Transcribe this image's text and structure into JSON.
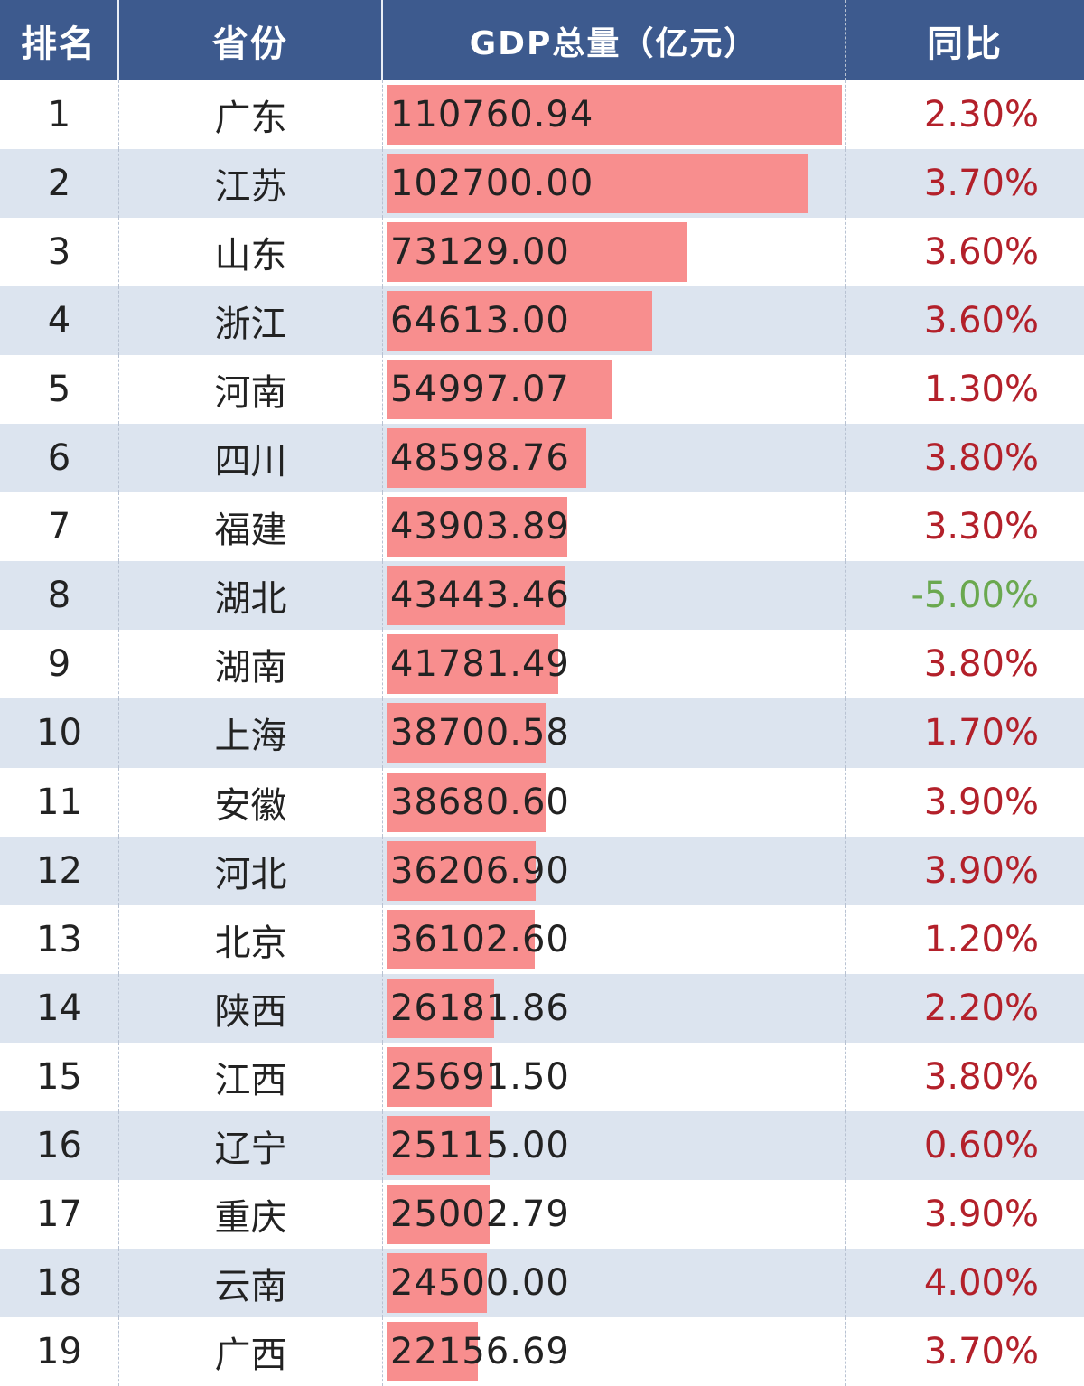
{
  "header": {
    "rank": "排名",
    "province": "省份",
    "gdp": "GDP总量（亿元）",
    "yoy": "同比"
  },
  "colors": {
    "header_bg": "#3d5a8e",
    "bar": "#f88e8e",
    "alt_row": "#dce4ef",
    "positive": "#b3202a",
    "negative": "#6aa84f"
  },
  "chart_data": {
    "type": "table",
    "columns": [
      "排名",
      "省份",
      "GDP总量（亿元）",
      "同比"
    ],
    "bar_max": 110760.94,
    "rows": [
      {
        "rank": "1",
        "province": "广东",
        "gdp": 110760.94,
        "gdp_text": "110760.94",
        "yoy": "2.30%"
      },
      {
        "rank": "2",
        "province": "江苏",
        "gdp": 102700.0,
        "gdp_text": "102700.00",
        "yoy": "3.70%"
      },
      {
        "rank": "3",
        "province": "山东",
        "gdp": 73129.0,
        "gdp_text": "73129.00",
        "yoy": "3.60%"
      },
      {
        "rank": "4",
        "province": "浙江",
        "gdp": 64613.0,
        "gdp_text": "64613.00",
        "yoy": "3.60%"
      },
      {
        "rank": "5",
        "province": "河南",
        "gdp": 54997.07,
        "gdp_text": "54997.07",
        "yoy": "1.30%"
      },
      {
        "rank": "6",
        "province": "四川",
        "gdp": 48598.76,
        "gdp_text": "48598.76",
        "yoy": "3.80%"
      },
      {
        "rank": "7",
        "province": "福建",
        "gdp": 43903.89,
        "gdp_text": "43903.89",
        "yoy": "3.30%"
      },
      {
        "rank": "8",
        "province": "湖北",
        "gdp": 43443.46,
        "gdp_text": "43443.46",
        "yoy": "-5.00%"
      },
      {
        "rank": "9",
        "province": "湖南",
        "gdp": 41781.49,
        "gdp_text": "41781.49",
        "yoy": "3.80%"
      },
      {
        "rank": "10",
        "province": "上海",
        "gdp": 38700.58,
        "gdp_text": "38700.58",
        "yoy": "1.70%"
      },
      {
        "rank": "11",
        "province": "安徽",
        "gdp": 38680.6,
        "gdp_text": "38680.60",
        "yoy": "3.90%"
      },
      {
        "rank": "12",
        "province": "河北",
        "gdp": 36206.9,
        "gdp_text": "36206.90",
        "yoy": "3.90%"
      },
      {
        "rank": "13",
        "province": "北京",
        "gdp": 36102.6,
        "gdp_text": "36102.60",
        "yoy": "1.20%"
      },
      {
        "rank": "14",
        "province": "陕西",
        "gdp": 26181.86,
        "gdp_text": "26181.86",
        "yoy": "2.20%"
      },
      {
        "rank": "15",
        "province": "江西",
        "gdp": 25691.5,
        "gdp_text": "25691.50",
        "yoy": "3.80%"
      },
      {
        "rank": "16",
        "province": "辽宁",
        "gdp": 25115.0,
        "gdp_text": "25115.00",
        "yoy": "0.60%"
      },
      {
        "rank": "17",
        "province": "重庆",
        "gdp": 25002.79,
        "gdp_text": "25002.79",
        "yoy": "3.90%"
      },
      {
        "rank": "18",
        "province": "云南",
        "gdp": 24500.0,
        "gdp_text": "24500.00",
        "yoy": "4.00%"
      },
      {
        "rank": "19",
        "province": "广西",
        "gdp": 22156.69,
        "gdp_text": "22156.69",
        "yoy": "3.70%"
      }
    ]
  }
}
